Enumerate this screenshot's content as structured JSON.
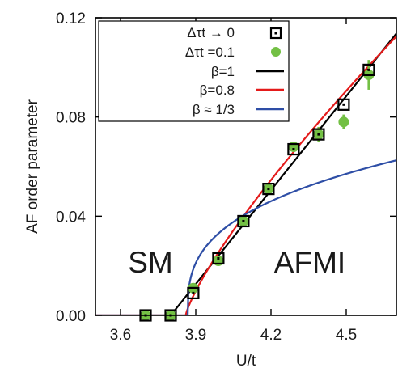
{
  "chart_data": {
    "type": "scatter",
    "xlabel": "U/t",
    "ylabel": "AF order parameter",
    "xlim": [
      3.5,
      4.7
    ],
    "ylim": [
      0.0,
      0.12
    ],
    "x_ticks": [
      "3.6",
      "3.9",
      "4.2",
      "4.5"
    ],
    "y_ticks": [
      "0.00",
      "0.04",
      "0.08",
      "0.12"
    ],
    "x_tick_values": [
      3.6,
      3.9,
      4.2,
      4.5
    ],
    "y_tick_values": [
      0.0,
      0.04,
      0.08,
      0.12
    ],
    "grid": false,
    "legend_position": "top-left",
    "annotations": [
      {
        "text": "SM",
        "x": 3.72,
        "y": 0.018
      },
      {
        "text": "AFMI",
        "x": 4.3,
        "y": 0.018
      }
    ],
    "series": [
      {
        "name": "Δτt → 0",
        "kind": "markers",
        "marker": "open-square-with-dot",
        "color": "#000000",
        "x": [
          3.7,
          3.8,
          3.89,
          3.99,
          4.09,
          4.19,
          4.29,
          4.39,
          4.49,
          4.59
        ],
        "y": [
          0.0,
          0.0,
          0.009,
          0.023,
          0.038,
          0.051,
          0.067,
          0.073,
          0.085,
          0.099
        ]
      },
      {
        "name": "Δτt =0.1",
        "kind": "markers",
        "marker": "filled-circle",
        "color": "#73c044",
        "x": [
          3.7,
          3.8,
          3.89,
          3.99,
          4.09,
          4.19,
          4.29,
          4.39,
          4.49,
          4.59
        ],
        "y": [
          0.0,
          0.0,
          0.011,
          0.022,
          0.038,
          0.051,
          0.068,
          0.073,
          0.078,
          0.097
        ],
        "err": [
          0.0,
          0.0,
          0.002,
          0.001,
          0.001,
          0.001,
          0.002,
          0.003,
          0.003,
          0.006
        ]
      },
      {
        "name": "β=1",
        "kind": "fit",
        "color": "#000000",
        "Uc": 3.8,
        "amp": 0.1263,
        "beta": 1
      },
      {
        "name": "β=0.8",
        "kind": "fit",
        "color": "#e41a1a",
        "Uc": 3.86,
        "amp": 0.1294,
        "beta": 0.8
      },
      {
        "name": "β ≈ 1/3",
        "kind": "fit",
        "color": "#2e4ea6",
        "Uc": 3.868,
        "amp": 0.0665,
        "beta": 0.3333
      }
    ]
  }
}
